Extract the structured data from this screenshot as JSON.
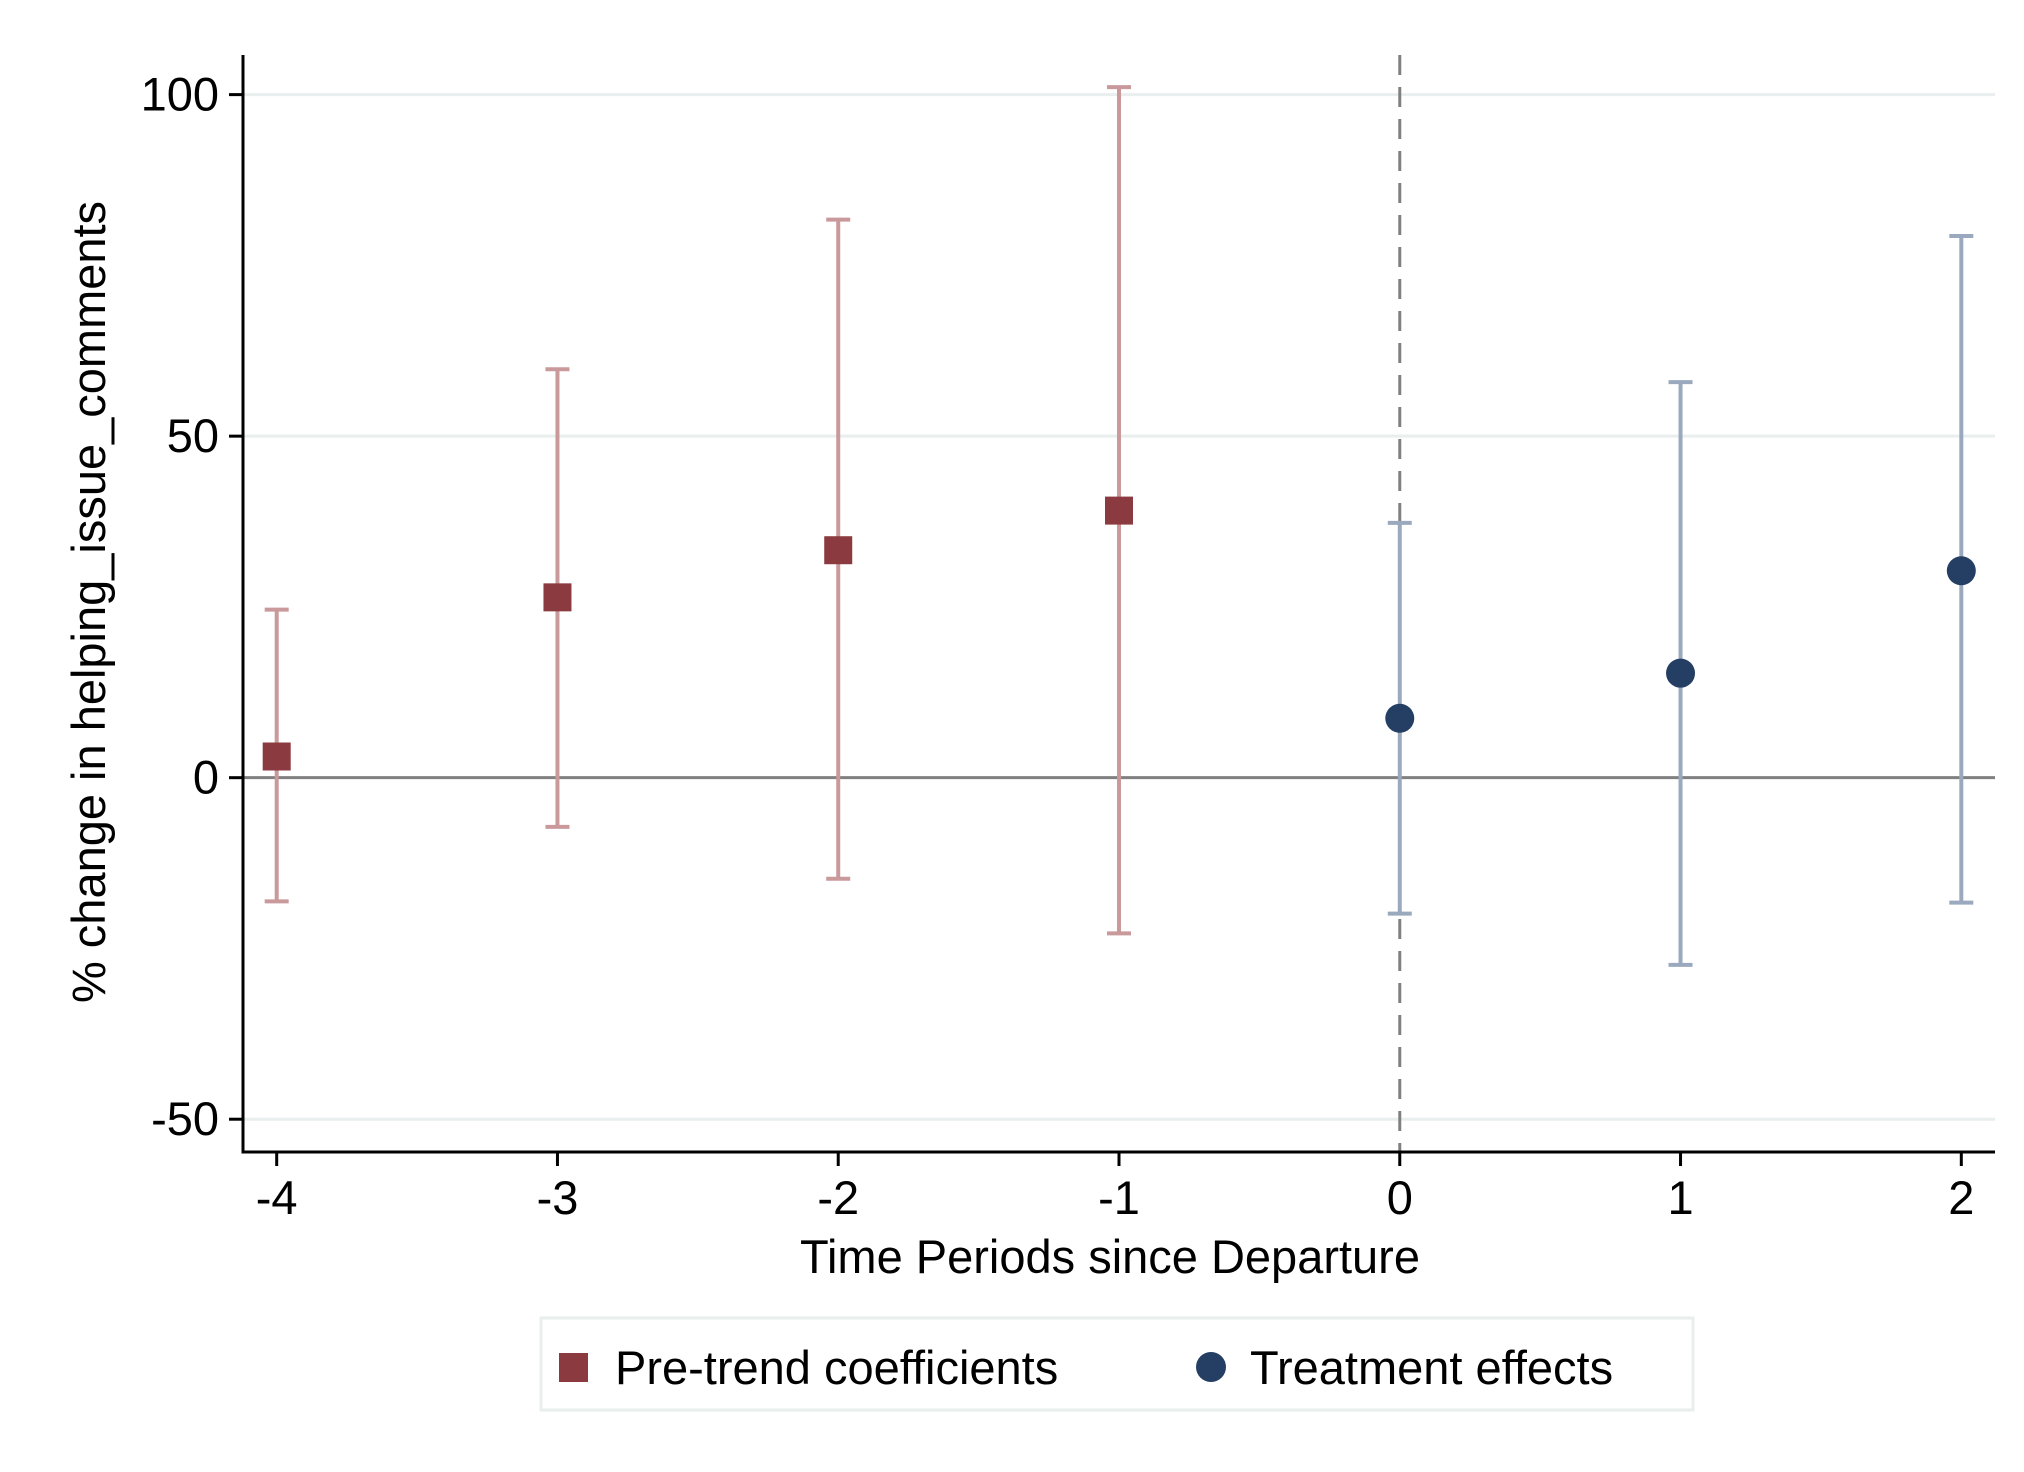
{
  "chart_data": {
    "type": "scatter",
    "title": "",
    "xlabel": "Time Periods since Departure",
    "ylabel": "% change in helping_issue_comments",
    "xlim": [
      -4.12,
      2.12
    ],
    "ylim": [
      -54.8,
      105.8
    ],
    "x_ticks": [
      -4,
      -3,
      -2,
      -1,
      0,
      1,
      2
    ],
    "x_tick_labels": [
      "-4",
      "-3",
      "-2",
      "-1",
      "0",
      "1",
      "2"
    ],
    "y_ticks": [
      100,
      50,
      0,
      -50
    ],
    "y_tick_labels": [
      "100",
      "50",
      "0",
      "-50"
    ],
    "grid": "horizontal",
    "reference_lines": {
      "horizontal_y": 0,
      "vertical_x": 0,
      "vertical_style": "dashed"
    },
    "legend_position": "bottom",
    "series": [
      {
        "name": "Pre-trend coefficients",
        "marker": "square",
        "color": "#8B3A3F",
        "ci_color": "#C9999B",
        "points": [
          {
            "x": -4,
            "y": 3.1,
            "lo": -18.1,
            "hi": 24.6
          },
          {
            "x": -3,
            "y": 26.4,
            "lo": -7.2,
            "hi": 59.8
          },
          {
            "x": -2,
            "y": 33.3,
            "lo": -14.8,
            "hi": 81.7
          },
          {
            "x": -1,
            "y": 39.1,
            "lo": -22.8,
            "hi": 101.1
          }
        ]
      },
      {
        "name": "Treatment effects",
        "marker": "circle",
        "color": "#243F63",
        "ci_color": "#9AA9BE",
        "points": [
          {
            "x": 0,
            "y": 8.7,
            "lo": -19.9,
            "hi": 37.3
          },
          {
            "x": 1,
            "y": 15.3,
            "lo": -27.4,
            "hi": 57.9
          },
          {
            "x": 2,
            "y": 30.3,
            "lo": -18.3,
            "hi": 79.3
          }
        ]
      }
    ]
  }
}
